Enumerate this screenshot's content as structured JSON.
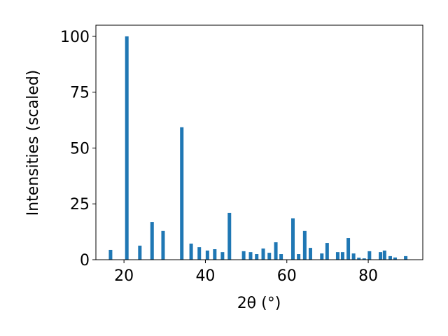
{
  "chart_data": {
    "type": "bar",
    "x_label": "2θ (°)",
    "y_label": "Intensities (scaled)",
    "x": [
      16.7,
      20.7,
      23.9,
      26.9,
      29.6,
      34.2,
      36.5,
      38.5,
      40.5,
      42.3,
      44.2,
      45.9,
      49.4,
      51.1,
      52.6,
      54.2,
      55.7,
      57.3,
      58.6,
      61.5,
      62.9,
      64.4,
      65.8,
      68.6,
      69.9,
      72.5,
      73.7,
      75.1,
      76.4,
      77.7,
      79.0,
      80.3,
      83.0,
      84.0,
      85.4,
      86.6,
      89.2
    ],
    "values": [
      4.4,
      100,
      6.3,
      16.9,
      12.9,
      59.3,
      7.2,
      5.6,
      4.1,
      4.7,
      3.4,
      21.0,
      3.8,
      3.4,
      2.5,
      5.0,
      3.1,
      7.8,
      2.5,
      18.5,
      2.5,
      12.9,
      5.3,
      2.8,
      7.5,
      3.4,
      3.4,
      9.7,
      2.8,
      0.9,
      0.6,
      3.8,
      3.4,
      4.1,
      1.6,
      1.0,
      1.6
    ],
    "color": "#1f77b4",
    "xlim": [
      13.1,
      93.4
    ],
    "xticks": [
      20,
      40,
      60,
      80
    ],
    "ylim": [
      0,
      105
    ],
    "yticks": [
      0,
      25,
      50,
      75,
      100
    ]
  }
}
